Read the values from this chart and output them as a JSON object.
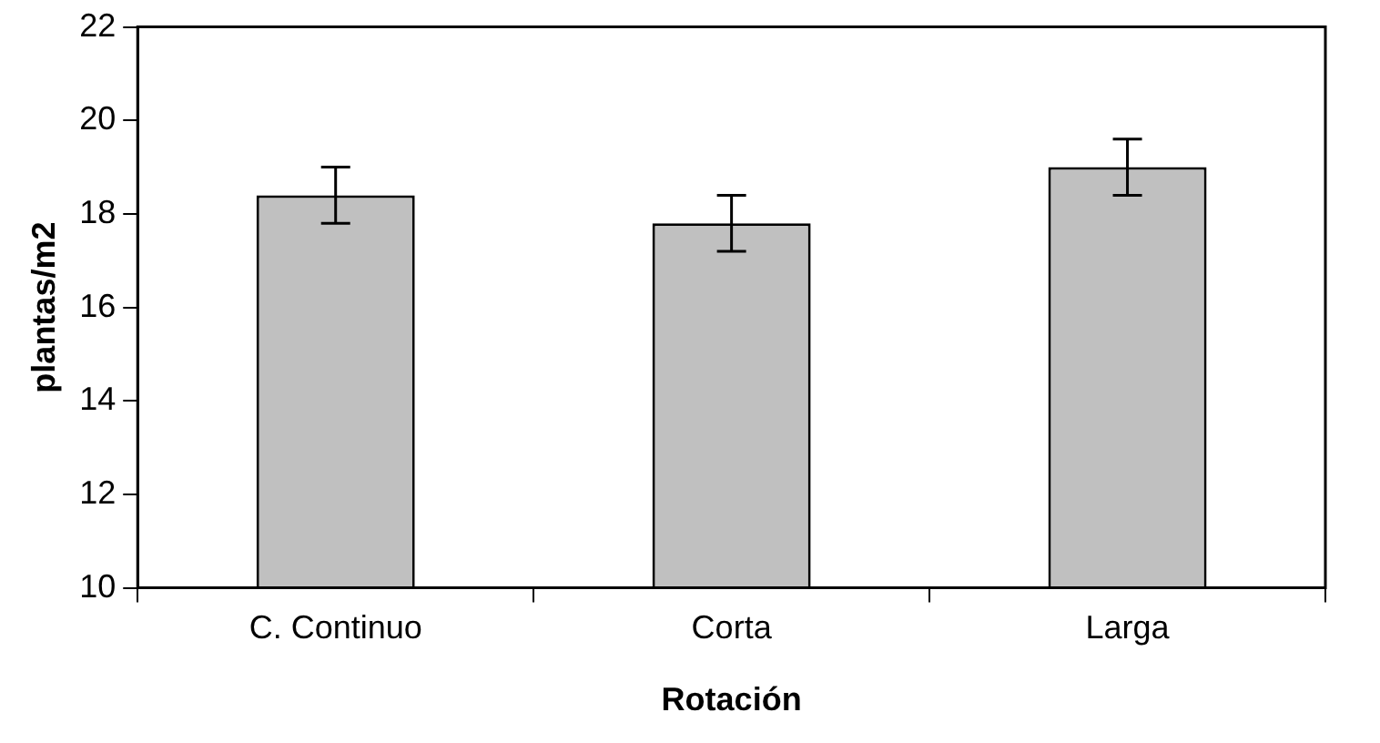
{
  "chart_data": {
    "type": "bar",
    "xlabel": "Rotación",
    "ylabel": "plantas/m2",
    "categories": [
      "C. Continuo",
      "Corta",
      "Larga"
    ],
    "values": [
      18.4,
      17.8,
      19.0
    ],
    "errors": [
      0.6,
      0.6,
      0.6
    ],
    "color": "#c0c0c0",
    "ylim": [
      10,
      22
    ],
    "yticks": [
      10,
      12,
      14,
      16,
      18,
      20,
      22
    ],
    "grid": false,
    "legend": false
  }
}
